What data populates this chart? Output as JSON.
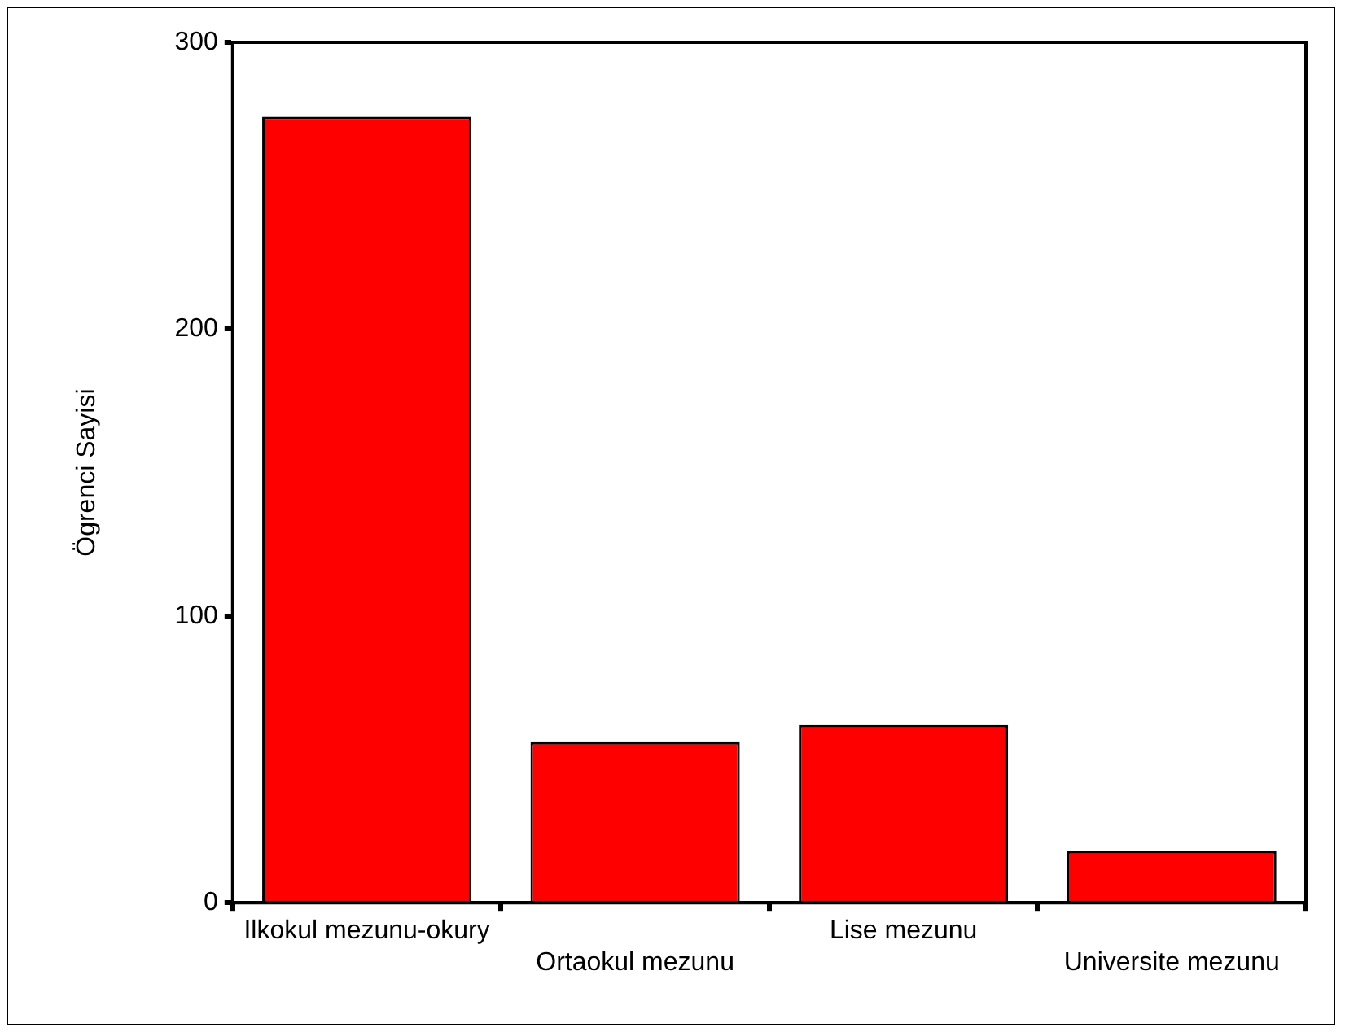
{
  "chart_data": {
    "type": "bar",
    "ylabel": "Ögrenci Sayisi",
    "categories": [
      "Ilkokul mezunu-okury",
      "Ortaokul mezunu",
      "Lise mezunu",
      "Universite mezunu"
    ],
    "values": [
      274,
      56,
      62,
      18
    ],
    "color": "#ff0000",
    "ylim": [
      0,
      300
    ],
    "yticks": [
      0,
      100,
      200,
      300
    ],
    "grid": false,
    "legend": false
  }
}
